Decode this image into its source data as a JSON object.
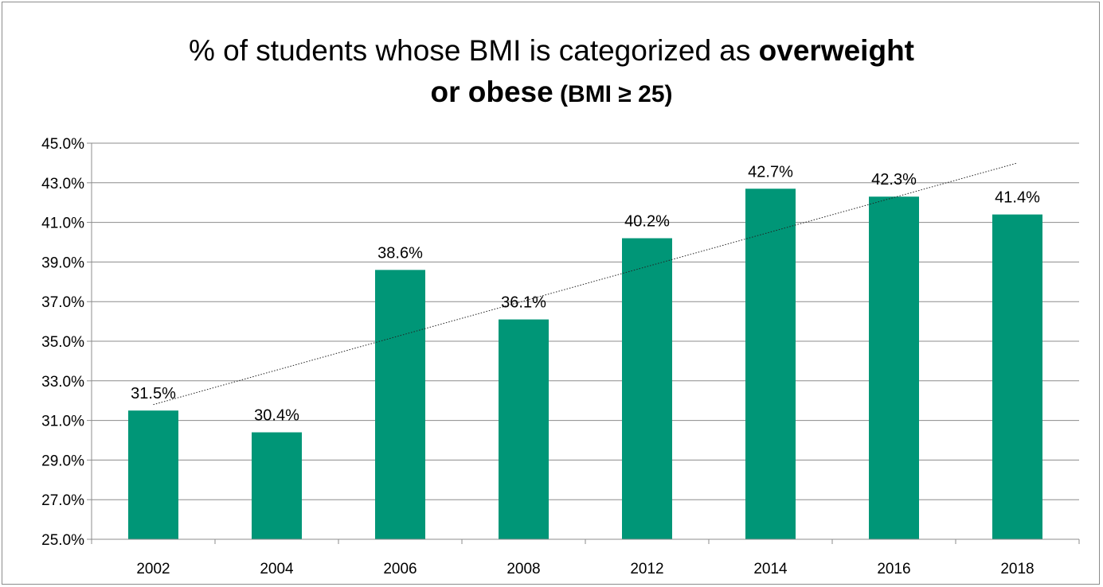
{
  "title": {
    "part1": "% of students whose BMI is categorized as ",
    "part2_bold": "overweight",
    "part3_bold": "or obese",
    "part4_small": " (BMI ≥ 25)"
  },
  "chart_data": {
    "type": "bar",
    "title": "% of students whose BMI is categorized as overweight or obese (BMI ≥ 25)",
    "categories": [
      "2002",
      "2004",
      "2006",
      "2008",
      "2012",
      "2014",
      "2016",
      "2018"
    ],
    "values": [
      31.5,
      30.4,
      38.6,
      36.1,
      40.2,
      42.7,
      42.3,
      41.4
    ],
    "data_labels": [
      "31.5%",
      "30.4%",
      "38.6%",
      "36.1%",
      "40.2%",
      "42.7%",
      "42.3%",
      "41.4%"
    ],
    "ylim": [
      25,
      45
    ],
    "yticks": [
      25,
      27,
      29,
      31,
      33,
      35,
      37,
      39,
      41,
      43,
      45
    ],
    "ytick_labels": [
      "25.0%",
      "27.0%",
      "29.0%",
      "31.0%",
      "33.0%",
      "35.0%",
      "37.0%",
      "39.0%",
      "41.0%",
      "43.0%",
      "45.0%"
    ],
    "bar_color": "#009677",
    "grid": true,
    "trendline": {
      "type": "linear",
      "style": "dotted",
      "start": 31.8,
      "end": 44.0
    },
    "legend": "none"
  }
}
